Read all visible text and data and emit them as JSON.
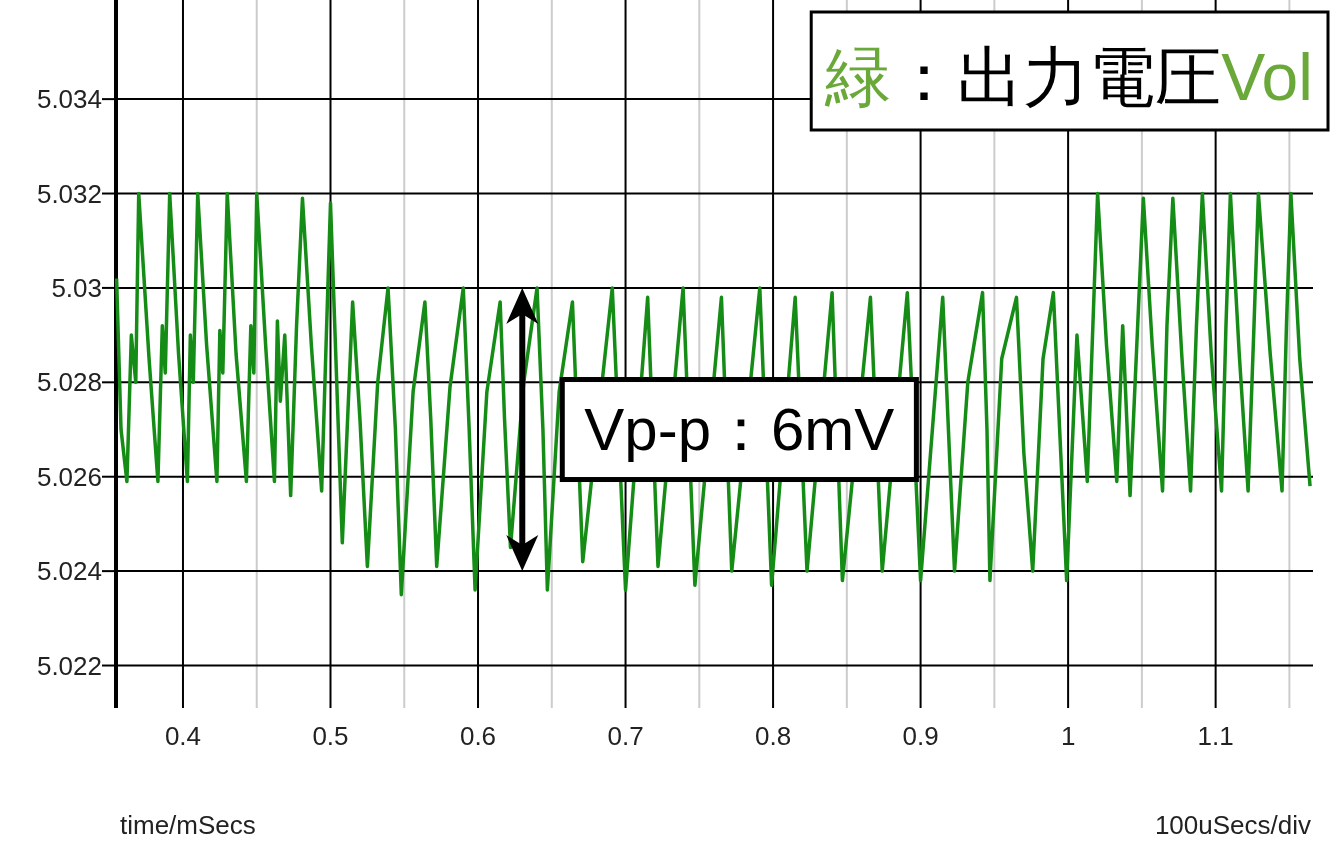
{
  "chart_data": {
    "type": "line",
    "title": "緑：出力電圧Vol",
    "xlabel": "time/mSecs",
    "annotations": [
      "100uSecs/div",
      {
        "text": "Vp-p：6mV",
        "x": 0.63,
        "y": 5.027
      }
    ],
    "color": "#158c15",
    "grid": true,
    "xlim": [
      0.3546,
      1.166
    ],
    "ylim": [
      5.0211,
      5.0361
    ],
    "xticks": [
      0.4,
      {
        "value": 0.45,
        "label": null
      },
      0.5,
      {
        "value": 0.55,
        "label": null
      },
      0.6,
      {
        "value": 0.65,
        "label": null
      },
      0.7,
      {
        "value": 0.75,
        "label": null
      },
      0.8,
      {
        "value": 0.85,
        "label": null
      },
      0.9,
      {
        "value": 0.95,
        "label": null
      },
      1,
      {
        "value": 1.05,
        "label": null
      },
      1.1,
      {
        "value": 1.15,
        "label": null
      }
    ],
    "yticks": [
      5.022,
      5.024,
      5.026,
      5.028,
      5.03,
      5.032,
      5.034
    ],
    "x": [
      0.355,
      0.358,
      0.362,
      0.365,
      0.368,
      0.37,
      0.377,
      0.383,
      0.386,
      0.388,
      0.391,
      0.397,
      0.403,
      0.405,
      0.407,
      0.41,
      0.416,
      0.423,
      0.425,
      0.427,
      0.43,
      0.436,
      0.443,
      0.446,
      0.448,
      0.45,
      0.456,
      0.462,
      0.464,
      0.466,
      0.469,
      0.473,
      0.477,
      0.481,
      0.487,
      0.494,
      0.497,
      0.5,
      0.508,
      0.515,
      0.52,
      0.525,
      0.532,
      0.539,
      0.544,
      0.548,
      0.556,
      0.564,
      0.568,
      0.572,
      0.581,
      0.59,
      0.594,
      0.598,
      0.606,
      0.615,
      0.618,
      0.622,
      0.631,
      0.64,
      0.644,
      0.647,
      0.655,
      0.664,
      0.671,
      0.691,
      0.7,
      0.715,
      0.722,
      0.739,
      0.747,
      0.765,
      0.772,
      0.791,
      0.799,
      0.815,
      0.823,
      0.84,
      0.847,
      0.866,
      0.874,
      0.891,
      0.9,
      0.915,
      0.923,
      0.932,
      0.942,
      0.945,
      0.947,
      0.955,
      0.965,
      0.97,
      0.976,
      0.983,
      0.99,
      0.995,
      0.999,
      1.006,
      1.013,
      1.02,
      1.026,
      1.033,
      1.037,
      1.042,
      1.051,
      1.057,
      1.064,
      1.067,
      1.071,
      1.077,
      1.083,
      1.087,
      1.091,
      1.097,
      1.104,
      1.107,
      1.11,
      1.116,
      1.122,
      1.126,
      1.129,
      1.137,
      1.145,
      1.148,
      1.151,
      1.157,
      1.164
    ],
    "values": [
      5.0302,
      5.027,
      5.0259,
      5.029,
      5.028,
      5.032,
      5.0285,
      5.0259,
      5.0292,
      5.0282,
      5.032,
      5.0286,
      5.0259,
      5.029,
      5.028,
      5.032,
      5.0288,
      5.0259,
      5.0291,
      5.0282,
      5.032,
      5.0286,
      5.0259,
      5.0292,
      5.0282,
      5.032,
      5.0288,
      5.0259,
      5.0293,
      5.0276,
      5.029,
      5.0256,
      5.0292,
      5.0319,
      5.0288,
      5.0257,
      5.0288,
      5.0318,
      5.0246,
      5.0297,
      5.0272,
      5.0241,
      5.028,
      5.03,
      5.027,
      5.0235,
      5.0278,
      5.0297,
      5.0272,
      5.0241,
      5.0279,
      5.03,
      5.027,
      5.0236,
      5.0278,
      5.0297,
      5.0272,
      5.0245,
      5.028,
      5.03,
      5.027,
      5.0236,
      5.0278,
      5.0297,
      5.0242,
      5.03,
      5.0236,
      5.0298,
      5.0241,
      5.03,
      5.0237,
      5.0298,
      5.024,
      5.03,
      5.0237,
      5.0298,
      5.024,
      5.0299,
      5.0238,
      5.0298,
      5.024,
      5.0299,
      5.0238,
      5.0298,
      5.024,
      5.028,
      5.0299,
      5.027,
      5.0238,
      5.0285,
      5.0298,
      5.0265,
      5.024,
      5.0285,
      5.0299,
      5.0265,
      5.0238,
      5.029,
      5.0259,
      5.032,
      5.0288,
      5.0259,
      5.0292,
      5.0256,
      5.0319,
      5.0288,
      5.0257,
      5.0292,
      5.0319,
      5.0286,
      5.0257,
      5.0292,
      5.032,
      5.0286,
      5.0257,
      5.0292,
      5.032,
      5.0286,
      5.0257,
      5.0292,
      5.032,
      5.0286,
      5.0257,
      5.0292,
      5.032,
      5.0285,
      5.0258
    ]
  }
}
